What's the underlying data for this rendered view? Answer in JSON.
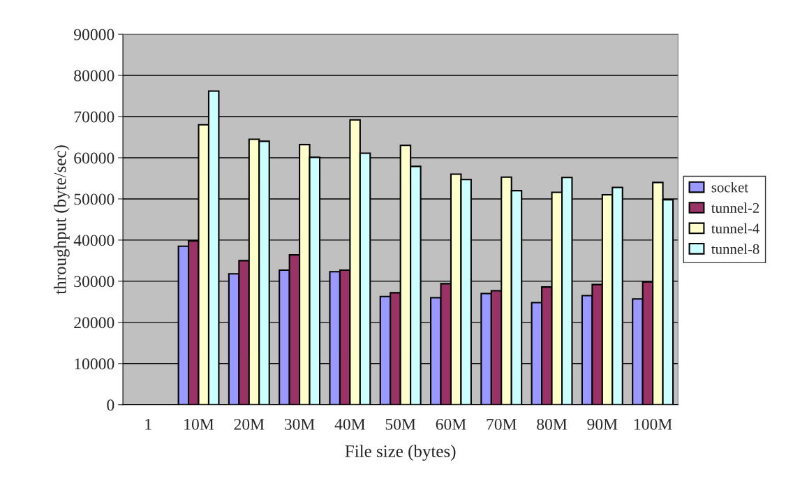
{
  "chart_data": {
    "type": "bar",
    "xlabel": "File size (bytes)",
    "ylabel": "throughput (byte/sec)",
    "categories": [
      "1",
      "10M",
      "20M",
      "30M",
      "40M",
      "50M",
      "60M",
      "70M",
      "80M",
      "90M",
      "100M"
    ],
    "series": [
      {
        "name": "socket",
        "color": "#9999ff",
        "values": [
          null,
          38500,
          31800,
          32700,
          32300,
          26300,
          26000,
          27000,
          24800,
          26500,
          25700
        ]
      },
      {
        "name": "tunnel-2",
        "color": "#993366",
        "values": [
          null,
          39800,
          35000,
          36400,
          32700,
          27200,
          29400,
          27700,
          28600,
          29200,
          29800
        ]
      },
      {
        "name": "tunnel-4",
        "color": "#ffffcc",
        "values": [
          null,
          68000,
          64500,
          63200,
          69200,
          63000,
          56000,
          55300,
          51600,
          51000,
          54000
        ]
      },
      {
        "name": "tunnel-8",
        "color": "#ccffff",
        "values": [
          null,
          76200,
          64000,
          60100,
          61100,
          57900,
          54700,
          52000,
          55200,
          52800,
          49800
        ]
      }
    ],
    "ylim": [
      0,
      90000
    ],
    "yticks": [
      0,
      10000,
      20000,
      30000,
      40000,
      50000,
      60000,
      70000,
      80000,
      90000
    ],
    "grid": "y",
    "legend": "right"
  }
}
